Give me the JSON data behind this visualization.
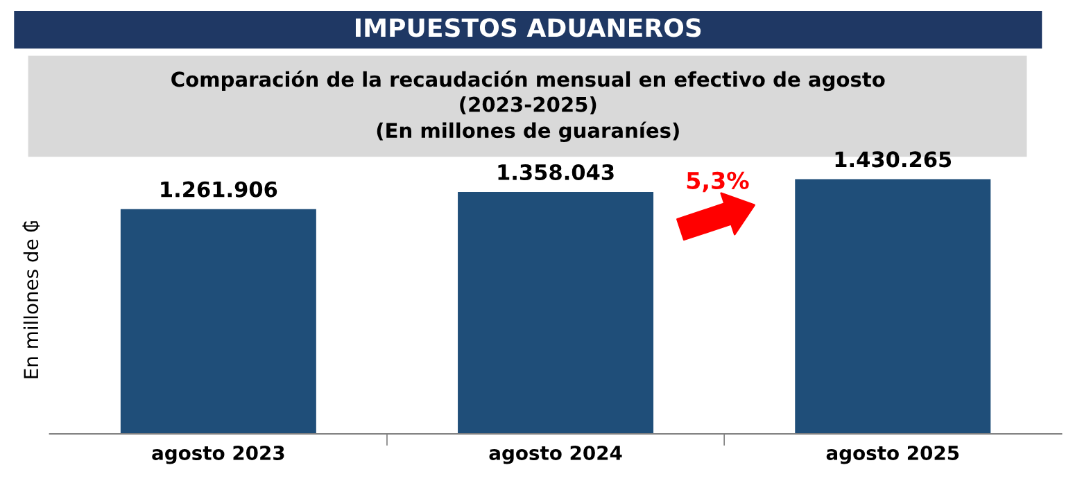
{
  "chart_data": {
    "type": "bar",
    "title": "IMPUESTOS ADUANEROS",
    "subtitle": "Comparación de la recaudación mensual en efectivo de agosto\n(2023-2025)\n(En millones de guaraníes)",
    "ylabel": "En millones de ₲",
    "categories": [
      "agosto 2023",
      "agosto 2024",
      "agosto 2025"
    ],
    "values": [
      1261906,
      1358043,
      1430265
    ],
    "value_labels": [
      "1.261.906",
      "1.358.043",
      "1.430.265"
    ],
    "color": "#1f4e79",
    "tick_labels": "x",
    "grid": false,
    "legend": false,
    "annotations": [
      "5,3%"
    ]
  }
}
